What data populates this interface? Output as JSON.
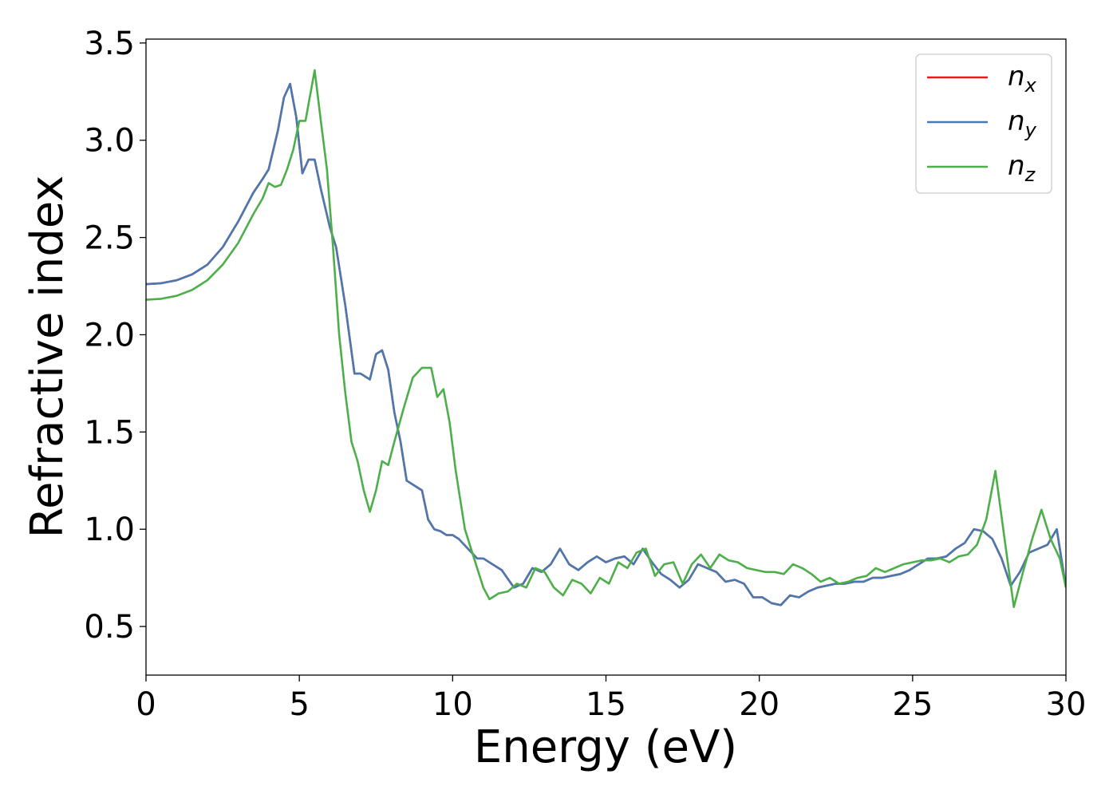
{
  "chart_data": {
    "type": "line",
    "title": "",
    "xlabel": "Energy (eV)",
    "ylabel": "Refractive index",
    "xlim": [
      0,
      30
    ],
    "ylim": [
      0.25,
      3.52
    ],
    "xticks": [
      0,
      5,
      10,
      15,
      20,
      25,
      30
    ],
    "yticks": [
      0.5,
      1.0,
      1.5,
      2.0,
      2.5,
      3.0,
      3.5
    ],
    "xtick_labels": [
      "0",
      "5",
      "10",
      "15",
      "20",
      "25",
      "30"
    ],
    "ytick_labels": [
      "0.5",
      "1.0",
      "1.5",
      "2.0",
      "2.5",
      "3.0",
      "3.5"
    ],
    "grid": false,
    "legend": "top-right",
    "series": [
      {
        "name": "n",
        "subscript": "x",
        "color": "#e41a1c",
        "x": [
          0,
          0.5,
          1,
          1.5,
          2,
          2.5,
          3,
          3.5,
          3.8,
          4,
          4.3,
          4.5,
          4.7,
          4.9,
          5.1,
          5.3,
          5.5,
          5.7,
          6,
          6.2,
          6.5,
          6.8,
          7,
          7.3,
          7.5,
          7.7,
          7.9,
          8.1,
          8.3,
          8.5,
          8.8,
          9,
          9.2,
          9.4,
          9.6,
          9.8,
          10,
          10.2,
          10.5,
          10.8,
          11,
          11.3,
          11.6,
          12,
          12.3,
          12.6,
          12.9,
          13.2,
          13.5,
          13.8,
          14.1,
          14.4,
          14.7,
          15,
          15.3,
          15.6,
          15.9,
          16.2,
          16.5,
          16.8,
          17.1,
          17.4,
          17.7,
          18,
          18.3,
          18.6,
          18.9,
          19.2,
          19.5,
          19.8,
          20.1,
          20.4,
          20.7,
          21,
          21.3,
          21.6,
          21.9,
          22.2,
          22.5,
          22.8,
          23.1,
          23.4,
          23.7,
          24,
          24.3,
          24.6,
          24.9,
          25.2,
          25.5,
          25.8,
          26.1,
          26.4,
          26.7,
          27,
          27.3,
          27.6,
          27.9,
          28.2,
          28.5,
          28.8,
          29.1,
          29.4,
          29.7,
          30
        ],
        "y": [
          2.26,
          2.265,
          2.28,
          2.31,
          2.36,
          2.45,
          2.58,
          2.73,
          2.8,
          2.85,
          3.05,
          3.22,
          3.29,
          3.12,
          2.83,
          2.9,
          2.9,
          2.75,
          2.55,
          2.45,
          2.15,
          1.8,
          1.8,
          1.77,
          1.9,
          1.92,
          1.82,
          1.6,
          1.45,
          1.25,
          1.22,
          1.2,
          1.05,
          1.0,
          0.99,
          0.97,
          0.97,
          0.95,
          0.9,
          0.85,
          0.85,
          0.82,
          0.79,
          0.7,
          0.72,
          0.8,
          0.78,
          0.82,
          0.9,
          0.82,
          0.79,
          0.83,
          0.86,
          0.83,
          0.85,
          0.86,
          0.82,
          0.9,
          0.83,
          0.77,
          0.74,
          0.7,
          0.74,
          0.82,
          0.8,
          0.78,
          0.73,
          0.74,
          0.72,
          0.65,
          0.65,
          0.62,
          0.61,
          0.66,
          0.65,
          0.68,
          0.7,
          0.71,
          0.72,
          0.72,
          0.73,
          0.73,
          0.75,
          0.75,
          0.76,
          0.77,
          0.79,
          0.82,
          0.85,
          0.85,
          0.86,
          0.9,
          0.93,
          1.0,
          0.99,
          0.95,
          0.85,
          0.71,
          0.78,
          0.88,
          0.9,
          0.92,
          1.0,
          0.7
        ]
      },
      {
        "name": "n",
        "subscript": "y",
        "color": "#4a79b0",
        "x": [
          0,
          0.5,
          1,
          1.5,
          2,
          2.5,
          3,
          3.5,
          3.8,
          4,
          4.3,
          4.5,
          4.7,
          4.9,
          5.1,
          5.3,
          5.5,
          5.7,
          6,
          6.2,
          6.5,
          6.8,
          7,
          7.3,
          7.5,
          7.7,
          7.9,
          8.1,
          8.3,
          8.5,
          8.8,
          9,
          9.2,
          9.4,
          9.6,
          9.8,
          10,
          10.2,
          10.5,
          10.8,
          11,
          11.3,
          11.6,
          12,
          12.3,
          12.6,
          12.9,
          13.2,
          13.5,
          13.8,
          14.1,
          14.4,
          14.7,
          15,
          15.3,
          15.6,
          15.9,
          16.2,
          16.5,
          16.8,
          17.1,
          17.4,
          17.7,
          18,
          18.3,
          18.6,
          18.9,
          19.2,
          19.5,
          19.8,
          20.1,
          20.4,
          20.7,
          21,
          21.3,
          21.6,
          21.9,
          22.2,
          22.5,
          22.8,
          23.1,
          23.4,
          23.7,
          24,
          24.3,
          24.6,
          24.9,
          25.2,
          25.5,
          25.8,
          26.1,
          26.4,
          26.7,
          27,
          27.3,
          27.6,
          27.9,
          28.2,
          28.5,
          28.8,
          29.1,
          29.4,
          29.7,
          30
        ],
        "y": [
          2.26,
          2.265,
          2.28,
          2.31,
          2.36,
          2.45,
          2.58,
          2.73,
          2.8,
          2.85,
          3.05,
          3.22,
          3.29,
          3.12,
          2.83,
          2.9,
          2.9,
          2.75,
          2.55,
          2.45,
          2.15,
          1.8,
          1.8,
          1.77,
          1.9,
          1.92,
          1.82,
          1.6,
          1.45,
          1.25,
          1.22,
          1.2,
          1.05,
          1.0,
          0.99,
          0.97,
          0.97,
          0.95,
          0.9,
          0.85,
          0.85,
          0.82,
          0.79,
          0.7,
          0.72,
          0.8,
          0.78,
          0.82,
          0.9,
          0.82,
          0.79,
          0.83,
          0.86,
          0.83,
          0.85,
          0.86,
          0.82,
          0.9,
          0.83,
          0.77,
          0.74,
          0.7,
          0.74,
          0.82,
          0.8,
          0.78,
          0.73,
          0.74,
          0.72,
          0.65,
          0.65,
          0.62,
          0.61,
          0.66,
          0.65,
          0.68,
          0.7,
          0.71,
          0.72,
          0.72,
          0.73,
          0.73,
          0.75,
          0.75,
          0.76,
          0.77,
          0.79,
          0.82,
          0.85,
          0.85,
          0.86,
          0.9,
          0.93,
          1.0,
          0.99,
          0.95,
          0.85,
          0.71,
          0.78,
          0.88,
          0.9,
          0.92,
          1.0,
          0.7
        ]
      },
      {
        "name": "n",
        "subscript": "z",
        "color": "#4daf4a",
        "x": [
          0,
          0.5,
          1,
          1.5,
          2,
          2.5,
          3,
          3.5,
          3.8,
          4,
          4.2,
          4.4,
          4.6,
          4.8,
          5,
          5.2,
          5.5,
          5.7,
          5.9,
          6.1,
          6.3,
          6.5,
          6.7,
          6.9,
          7.1,
          7.3,
          7.5,
          7.7,
          7.9,
          8.1,
          8.4,
          8.7,
          9,
          9.3,
          9.5,
          9.7,
          9.9,
          10.1,
          10.4,
          10.7,
          11,
          11.2,
          11.5,
          11.8,
          12.1,
          12.4,
          12.7,
          13,
          13.3,
          13.6,
          13.9,
          14.2,
          14.5,
          14.8,
          15.1,
          15.4,
          15.7,
          16,
          16.3,
          16.6,
          16.9,
          17.2,
          17.5,
          17.8,
          18.1,
          18.4,
          18.7,
          19,
          19.3,
          19.6,
          19.9,
          20.2,
          20.5,
          20.8,
          21.1,
          21.4,
          21.7,
          22,
          22.3,
          22.6,
          22.9,
          23.2,
          23.5,
          23.8,
          24.1,
          24.4,
          24.7,
          25,
          25.3,
          25.6,
          25.9,
          26.2,
          26.5,
          26.8,
          27.1,
          27.4,
          27.7,
          28,
          28.3,
          28.6,
          28.9,
          29.2,
          29.5,
          29.8,
          30
        ],
        "y": [
          2.18,
          2.185,
          2.2,
          2.23,
          2.28,
          2.36,
          2.47,
          2.62,
          2.7,
          2.78,
          2.76,
          2.77,
          2.85,
          2.95,
          3.1,
          3.1,
          3.36,
          3.1,
          2.85,
          2.45,
          2.0,
          1.7,
          1.45,
          1.35,
          1.2,
          1.09,
          1.2,
          1.35,
          1.33,
          1.45,
          1.62,
          1.78,
          1.83,
          1.83,
          1.68,
          1.72,
          1.55,
          1.3,
          1.0,
          0.85,
          0.7,
          0.64,
          0.67,
          0.68,
          0.72,
          0.7,
          0.8,
          0.78,
          0.7,
          0.66,
          0.74,
          0.72,
          0.67,
          0.75,
          0.72,
          0.83,
          0.8,
          0.88,
          0.9,
          0.76,
          0.82,
          0.83,
          0.72,
          0.82,
          0.87,
          0.8,
          0.87,
          0.84,
          0.83,
          0.8,
          0.79,
          0.78,
          0.78,
          0.77,
          0.82,
          0.8,
          0.77,
          0.73,
          0.75,
          0.72,
          0.73,
          0.75,
          0.76,
          0.8,
          0.78,
          0.8,
          0.82,
          0.83,
          0.84,
          0.84,
          0.85,
          0.83,
          0.86,
          0.87,
          0.92,
          1.05,
          1.3,
          0.95,
          0.6,
          0.78,
          0.95,
          1.1,
          0.95,
          0.85,
          0.7
        ]
      }
    ]
  }
}
